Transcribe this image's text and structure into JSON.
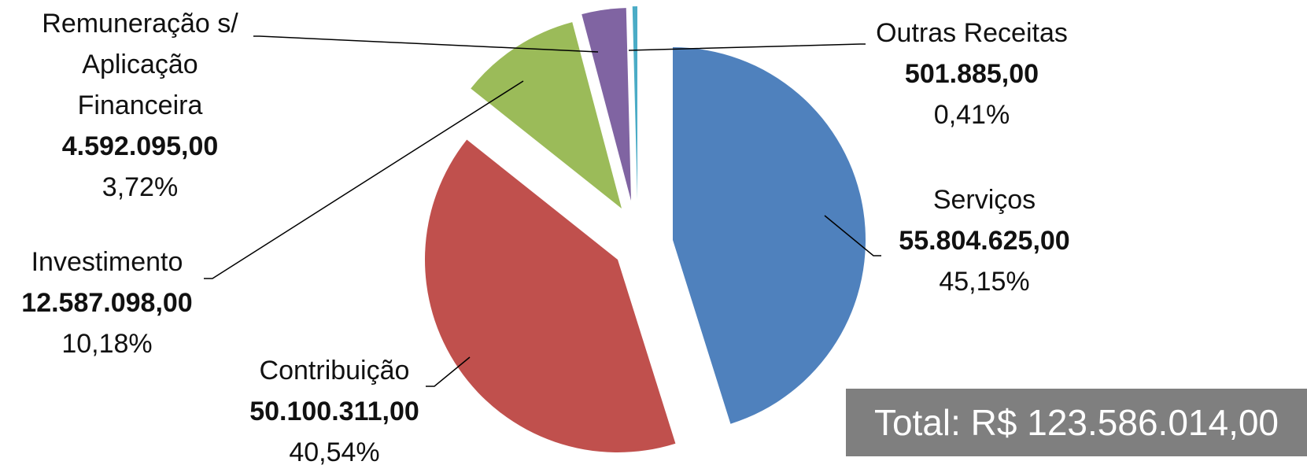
{
  "chart_data": {
    "type": "pie",
    "total_label": "Total: R$ 123.586.014,00",
    "slices": [
      {
        "label": "Serviços",
        "value": 55804625.0,
        "value_text": "55.804.625,00",
        "percent_text": "45,15%",
        "color": "#4F81BD"
      },
      {
        "label": "Contribuição",
        "value": 50100311.0,
        "value_text": "50.100.311,00",
        "percent_text": "40,54%",
        "color": "#C0504D"
      },
      {
        "label": "Investimento",
        "value": 12587098.0,
        "value_text": "12.587.098,00",
        "percent_text": "10,18%",
        "color": "#9BBB59"
      },
      {
        "label": [
          "Remuneração s/",
          "Aplicação",
          "Financeira"
        ],
        "value": 4592095.0,
        "value_text": "4.592.095,00",
        "percent_text": "3,72%",
        "color": "#8064A2"
      },
      {
        "label": "Outras Receitas",
        "value": 501885.0,
        "value_text": "501.885,00",
        "percent_text": "0,41%",
        "color": "#4BACC6"
      }
    ]
  }
}
